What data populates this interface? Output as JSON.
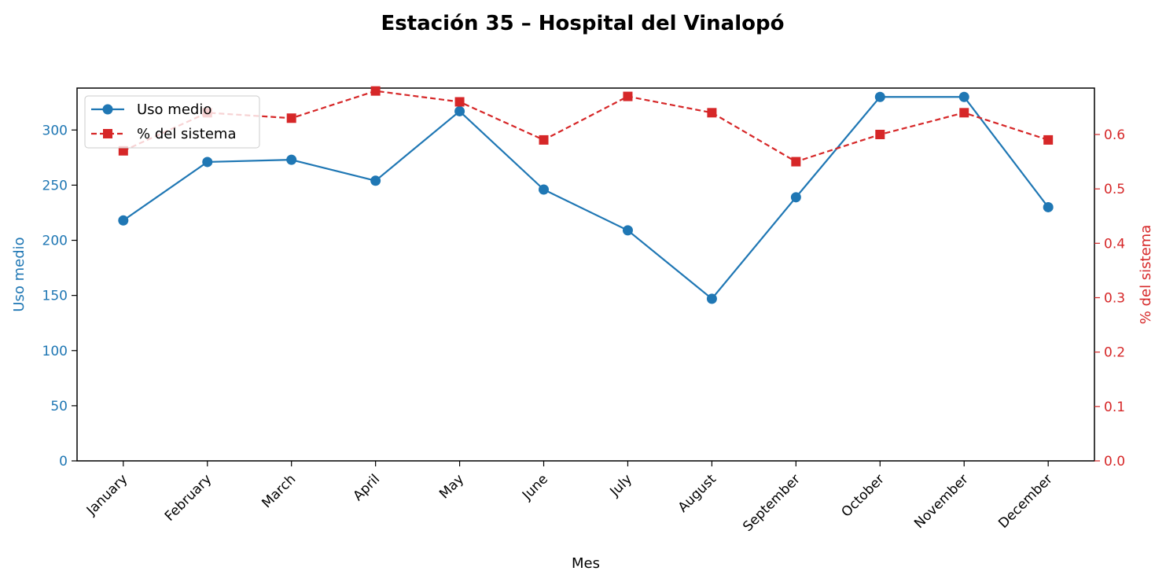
{
  "chart_data": {
    "type": "line",
    "title": "Estación 35 – Hospital del Vinalopó",
    "xlabel": "Mes",
    "categories": [
      "January",
      "February",
      "March",
      "April",
      "May",
      "June",
      "July",
      "August",
      "September",
      "October",
      "November",
      "December"
    ],
    "series": [
      {
        "name": "Uso medio",
        "axis": "left",
        "values": [
          218,
          271,
          273,
          254,
          317,
          246,
          209,
          147,
          239,
          330,
          330,
          230
        ],
        "color": "#1f77b4",
        "line_style": "solid",
        "marker": "circle"
      },
      {
        "name": "% del sistema",
        "axis": "right",
        "values": [
          0.57,
          0.64,
          0.63,
          0.68,
          0.66,
          0.59,
          0.67,
          0.64,
          0.55,
          0.6,
          0.64,
          0.59
        ],
        "color": "#d62728",
        "line_style": "dashed",
        "marker": "square"
      }
    ],
    "y_left": {
      "label": "Uso medio",
      "ylim": [
        0,
        338
      ],
      "ticks": [
        "0",
        "50",
        "100",
        "150",
        "200",
        "250",
        "300"
      ],
      "color": "#1f77b4"
    },
    "y_right": {
      "label": "% del sistema",
      "ylim": [
        0,
        0.6853
      ],
      "ticks": [
        "0.0",
        "0.1",
        "0.2",
        "0.3",
        "0.4",
        "0.5",
        "0.6"
      ],
      "color": "#d62728"
    },
    "grid": false,
    "legend_position": "top-left"
  }
}
